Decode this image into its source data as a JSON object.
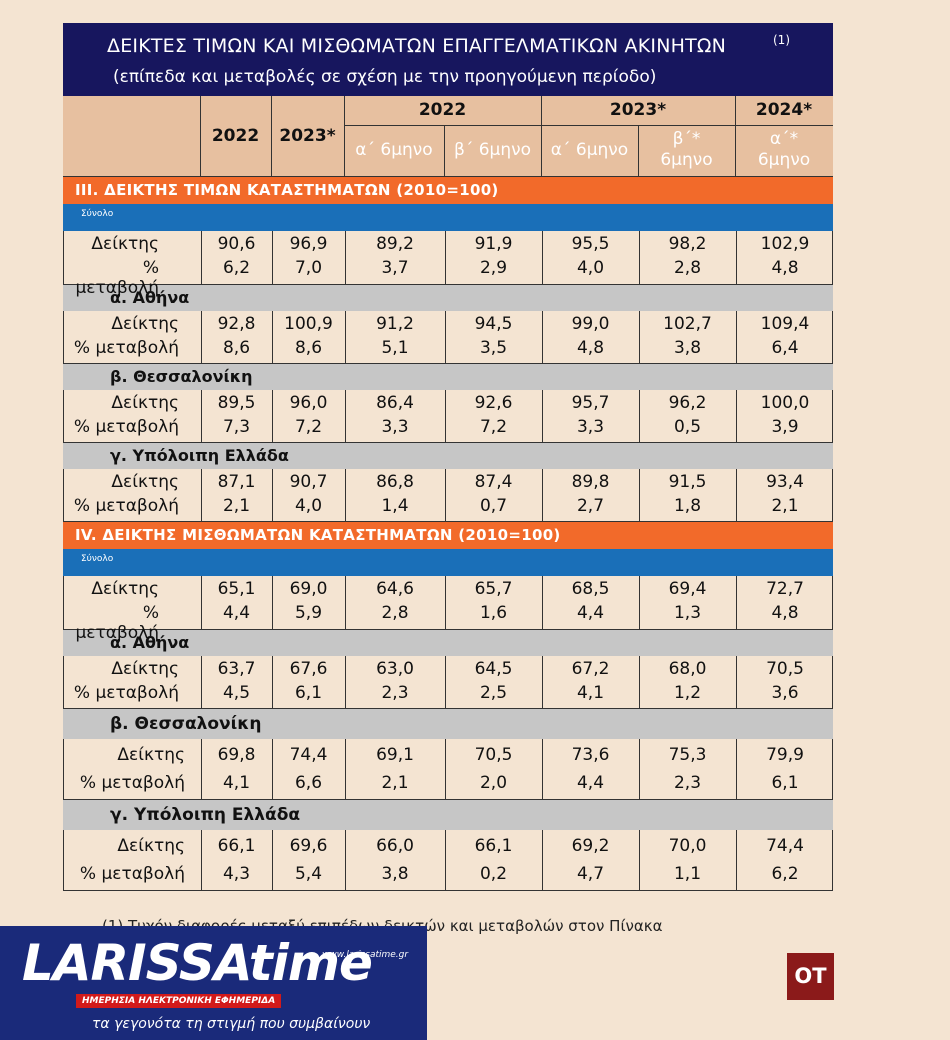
{
  "title": {
    "line1": "ΔΕΙΚΤΕΣ ΤΙΜΩΝ ΚΑΙ ΜΙΣΘΩΜΑΤΩΝ ΕΠΑΓΓΕΛΜΑΤΙΚΩΝ ΑΚΙΝΗΤΩΝ",
    "line2": "(επίπεδα και μεταβολές σε σχέση με την προηγούμενη περίοδο)",
    "note_mark": "(1)"
  },
  "header": {
    "year_cols": [
      "2022",
      "2023*"
    ],
    "groups": [
      "2022",
      "2023*",
      "2024*"
    ],
    "periods": [
      "α΄ 6μηνο",
      "β΄ 6μηνο",
      "α΄ 6μηνο",
      "β΄* 6μηνο",
      "α΄* 6μηνο"
    ],
    "period_lines": [
      [
        "α΄ 6μηνο"
      ],
      [
        "β΄ 6μηνο"
      ],
      [
        "α΄ 6μηνο"
      ],
      [
        "β΄*",
        "6μηνο"
      ],
      [
        "α΄*",
        "6μηνο"
      ]
    ]
  },
  "sections": [
    {
      "title": "ΙΙΙ. ΔΕΙΚΤΗΣ ΤΙΜΩΝ ΚΑΤΑΣΤΗΜΑΤΩΝ (2010=100)",
      "total_label": "Σύνολο",
      "total": {
        "index_label": "Δείκτης",
        "change_label": "% μεταβολή",
        "index": [
          "90,6",
          "96,9",
          "89,2",
          "91,9",
          "95,5",
          "98,2",
          "102,9"
        ],
        "change": [
          "6,2",
          "7,0",
          "3,7",
          "2,9",
          "4,0",
          "2,8",
          "4,8"
        ]
      },
      "regions": [
        {
          "name": "α. Αθήνα",
          "index_label": "Δείκτης",
          "change_label": "% μεταβολή",
          "index": [
            "92,8",
            "100,9",
            "91,2",
            "94,5",
            "99,0",
            "102,7",
            "109,4"
          ],
          "change": [
            "8,6",
            "8,6",
            "5,1",
            "3,5",
            "4,8",
            "3,8",
            "6,4"
          ]
        },
        {
          "name": "β. Θεσσαλονίκη",
          "index_label": "Δείκτης",
          "change_label": "% μεταβολή",
          "index": [
            "89,5",
            "96,0",
            "86,4",
            "92,6",
            "95,7",
            "96,2",
            "100,0"
          ],
          "change": [
            "7,3",
            "7,2",
            "3,3",
            "7,2",
            "3,3",
            "0,5",
            "3,9"
          ]
        },
        {
          "name": "γ. Υπόλοιπη Ελλάδα",
          "index_label": "Δείκτης",
          "change_label": "% μεταβολή",
          "index": [
            "87,1",
            "90,7",
            "86,8",
            "87,4",
            "89,8",
            "91,5",
            "93,4"
          ],
          "change": [
            "2,1",
            "4,0",
            "1,4",
            "0,7",
            "2,7",
            "1,8",
            "2,1"
          ]
        }
      ]
    },
    {
      "title": "ΙV. ΔΕΙΚΤΗΣ ΜΙΣΘΩΜΑΤΩΝ ΚΑΤΑΣΤΗΜΑΤΩΝ (2010=100)",
      "total_label": "Σύνολο",
      "total": {
        "index_label": "Δείκτης",
        "change_label": "% μεταβολή",
        "index": [
          "65,1",
          "69,0",
          "64,6",
          "65,7",
          "68,5",
          "69,4",
          "72,7"
        ],
        "change": [
          "4,4",
          "5,9",
          "2,8",
          "1,6",
          "4,4",
          "1,3",
          "4,8"
        ]
      },
      "regions": [
        {
          "name": "α. Αθήνα",
          "index_label": "Δείκτης",
          "change_label": "% μεταβολή",
          "index": [
            "63,7",
            "67,6",
            "63,0",
            "64,5",
            "67,2",
            "68,0",
            "70,5"
          ],
          "change": [
            "4,5",
            "6,1",
            "2,3",
            "2,5",
            "4,1",
            "1,2",
            "3,6"
          ]
        },
        {
          "name": "β. Θεσσαλονίκη",
          "index_label": "Δείκτης",
          "change_label": "% μεταβολή",
          "index": [
            "69,8",
            "74,4",
            "69,1",
            "70,5",
            "73,6",
            "75,3",
            "79,9"
          ],
          "change": [
            "4,1",
            "6,6",
            "2,1",
            "2,0",
            "4,4",
            "2,3",
            "6,1"
          ]
        },
        {
          "name": "γ. Υπόλοιπη Ελλάδα",
          "index_label": "Δείκτης",
          "change_label": "% μεταβολή",
          "index": [
            "66,1",
            "69,6",
            "66,0",
            "66,1",
            "69,2",
            "70,0",
            "74,4"
          ],
          "change": [
            "4,3",
            "5,4",
            "3,8",
            "0,2",
            "4,7",
            "1,1",
            "6,2"
          ]
        }
      ]
    }
  ],
  "footnote": "(1) Τυχόν διαφορές μεταξύ επιπέδων δεικτών και μεταβολών στον Πίνακα",
  "logo": {
    "brand_main": "LARISSA",
    "brand_script": "time",
    "site": "www.larissatime.gr",
    "strip": "ΗΜΕΡΗΣΙΑ ΗΛΕΚΤΡΟΝΙΚΗ ΕΦΗΜΕΡΙΔΑ",
    "slogan": "τα γεγονότα τη στιγμή που συμβαίνουν"
  },
  "badge": "OT",
  "colors": {
    "title_bg": "#17165e",
    "header_bg": "#e7c0a0",
    "section_bg": "#f26a2a",
    "total_bg": "#1a6fb8",
    "region_bg": "#c6c6c6",
    "page_bg": "#f4e4d2"
  }
}
